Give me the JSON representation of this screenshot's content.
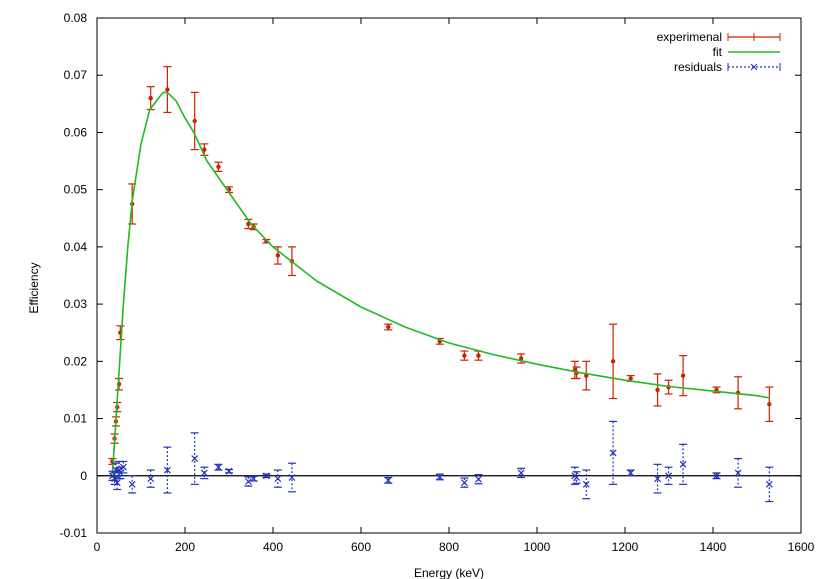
{
  "chart_data": {
    "type": "scatter",
    "title": "",
    "xlabel": "Energy (keV)",
    "ylabel": "Efficiency",
    "xlim": [
      0,
      1600
    ],
    "ylim": [
      -0.01,
      0.08
    ],
    "xticks": [
      "0",
      "200",
      "400",
      "600",
      "800",
      "1000",
      "1200",
      "1400",
      "1600"
    ],
    "yticks": [
      "-0.01",
      "0",
      "0.01",
      "0.02",
      "0.03",
      "0.04",
      "0.05",
      "0.06",
      "0.07",
      "0.08"
    ],
    "grid": false,
    "legend_position": "top-right",
    "series": [
      {
        "name": "experimenal",
        "style": "errorbars",
        "color": "#cc2200",
        "x": [
          35,
          40,
          43,
          46,
          50,
          53,
          80,
          122,
          160,
          222,
          244,
          276,
          300,
          344,
          356,
          385,
          411,
          443,
          662,
          779,
          835,
          867,
          964,
          1086,
          1090,
          1112,
          1173,
          1213,
          1274,
          1299,
          1332,
          1408,
          1457,
          1528
        ],
        "y": [
          0.0025,
          0.0065,
          0.0095,
          0.012,
          0.016,
          0.025,
          0.0475,
          0.066,
          0.0675,
          0.062,
          0.057,
          0.054,
          0.05,
          0.044,
          0.0435,
          0.041,
          0.0385,
          0.0375,
          0.026,
          0.0235,
          0.021,
          0.021,
          0.0205,
          0.0185,
          0.018,
          0.0175,
          0.02,
          0.017,
          0.015,
          0.0155,
          0.0175,
          0.015,
          0.0145,
          0.0125
        ],
        "err": [
          0.0005,
          0.0008,
          0.0008,
          0.0008,
          0.001,
          0.0012,
          0.0035,
          0.002,
          0.004,
          0.005,
          0.001,
          0.0008,
          0.0005,
          0.0008,
          0.0005,
          0.0003,
          0.0015,
          0.0025,
          0.0005,
          0.0005,
          0.0008,
          0.0008,
          0.0008,
          0.0015,
          0.001,
          0.0025,
          0.0065,
          0.0005,
          0.0028,
          0.0012,
          0.0035,
          0.0005,
          0.0028,
          0.003
        ]
      },
      {
        "name": "fit",
        "style": "line",
        "color": "#22bb22",
        "x": [
          35,
          40,
          45,
          50,
          60,
          70,
          80,
          100,
          120,
          150,
          160,
          180,
          200,
          220,
          250,
          300,
          350,
          400,
          450,
          500,
          600,
          700,
          800,
          900,
          1000,
          1100,
          1200,
          1300,
          1400,
          1500,
          1530
        ],
        "y": [
          0.0005,
          0.006,
          0.012,
          0.018,
          0.03,
          0.04,
          0.048,
          0.058,
          0.064,
          0.067,
          0.067,
          0.0655,
          0.0625,
          0.06,
          0.055,
          0.0495,
          0.044,
          0.04,
          0.037,
          0.034,
          0.0295,
          0.026,
          0.0232,
          0.0212,
          0.0195,
          0.018,
          0.0167,
          0.0156,
          0.0148,
          0.014,
          0.0136
        ]
      },
      {
        "name": "residuals",
        "style": "errorbars-dashed",
        "color": "#2233bb",
        "x": [
          35,
          40,
          43,
          46,
          50,
          53,
          60,
          80,
          122,
          160,
          222,
          244,
          276,
          300,
          344,
          356,
          385,
          411,
          443,
          662,
          779,
          835,
          867,
          964,
          1086,
          1090,
          1112,
          1173,
          1213,
          1274,
          1299,
          1332,
          1408,
          1457,
          1528
        ],
        "y": [
          0.0,
          -0.0005,
          0.001,
          -0.0012,
          0.001,
          0.0005,
          0.0015,
          -0.0015,
          -0.0005,
          0.001,
          0.003,
          0.0005,
          0.0015,
          0.0008,
          -0.001,
          -0.0005,
          0.0,
          -0.0005,
          -0.0003,
          -0.0008,
          -0.0002,
          -0.0012,
          -0.0006,
          0.0005,
          0.0,
          -0.0003,
          -0.0015,
          0.004,
          0.0005,
          -0.0005,
          0.0,
          0.002,
          0.0,
          0.0005,
          -0.0015
        ],
        "err": [
          0.0008,
          0.001,
          0.0012,
          0.0012,
          0.0015,
          0.001,
          0.001,
          0.0015,
          0.0015,
          0.004,
          0.0045,
          0.001,
          0.0005,
          0.0003,
          0.0008,
          0.0004,
          0.0003,
          0.0015,
          0.0025,
          0.0005,
          0.0005,
          0.0008,
          0.0008,
          0.0008,
          0.0015,
          0.001,
          0.0025,
          0.0055,
          0.0005,
          0.0025,
          0.0015,
          0.0035,
          0.0005,
          0.0025,
          0.003
        ]
      }
    ],
    "zero_line": true
  }
}
